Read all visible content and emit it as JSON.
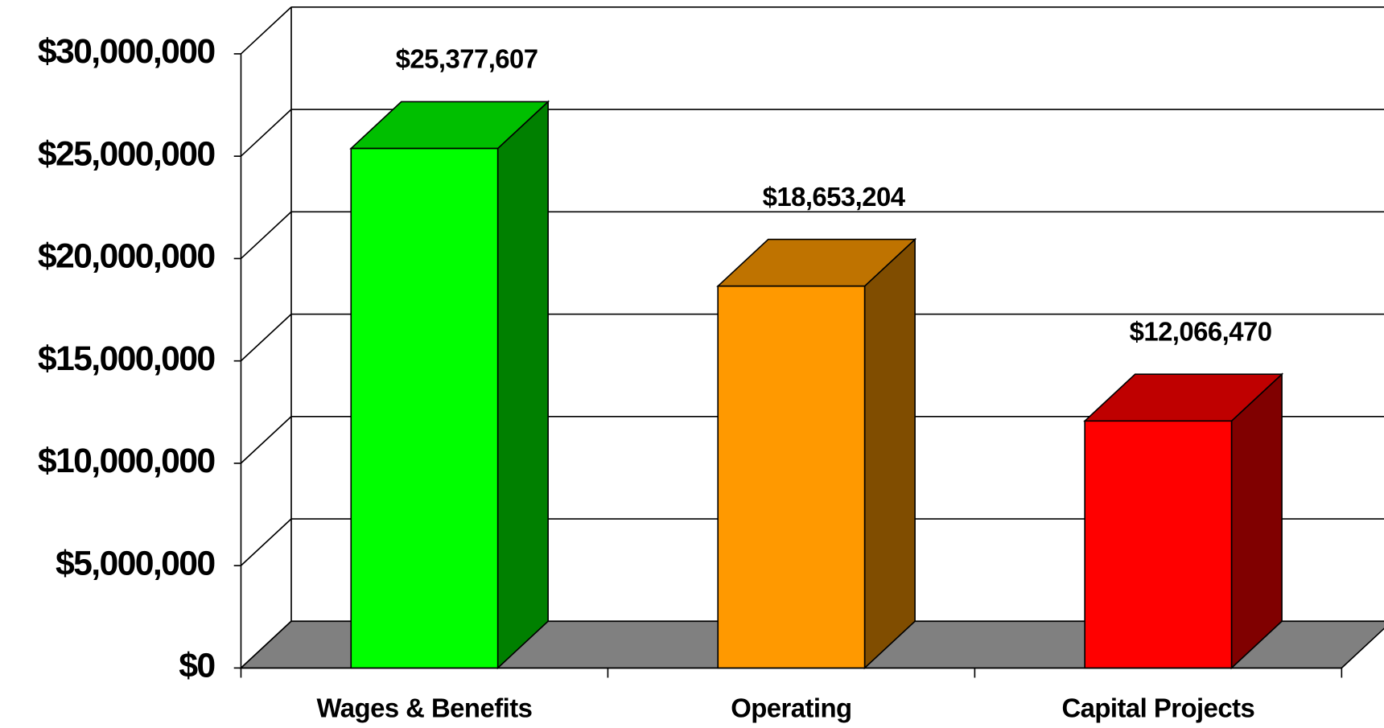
{
  "chart_data": {
    "type": "bar3d",
    "categories": [
      "Wages & Benefits",
      "Operating",
      "Capital Projects"
    ],
    "values": [
      25377607,
      18653204,
      12066470
    ],
    "value_labels": [
      "$25,377,607",
      "$18,653,204",
      "$12,066,470"
    ],
    "colors": [
      "#00ff00",
      "#ff9900",
      "#ff0000"
    ],
    "ylim": [
      0,
      30000000
    ],
    "yticks": [
      {
        "value": 0,
        "label": "$0"
      },
      {
        "value": 5000000,
        "label": "$5,000,000"
      },
      {
        "value": 10000000,
        "label": "$10,000,000"
      },
      {
        "value": 15000000,
        "label": "$15,000,000"
      },
      {
        "value": 20000000,
        "label": "$20,000,000"
      },
      {
        "value": 25000000,
        "label": "$25,000,000"
      },
      {
        "value": 30000000,
        "label": "$30,000,000"
      }
    ],
    "grid": true
  }
}
